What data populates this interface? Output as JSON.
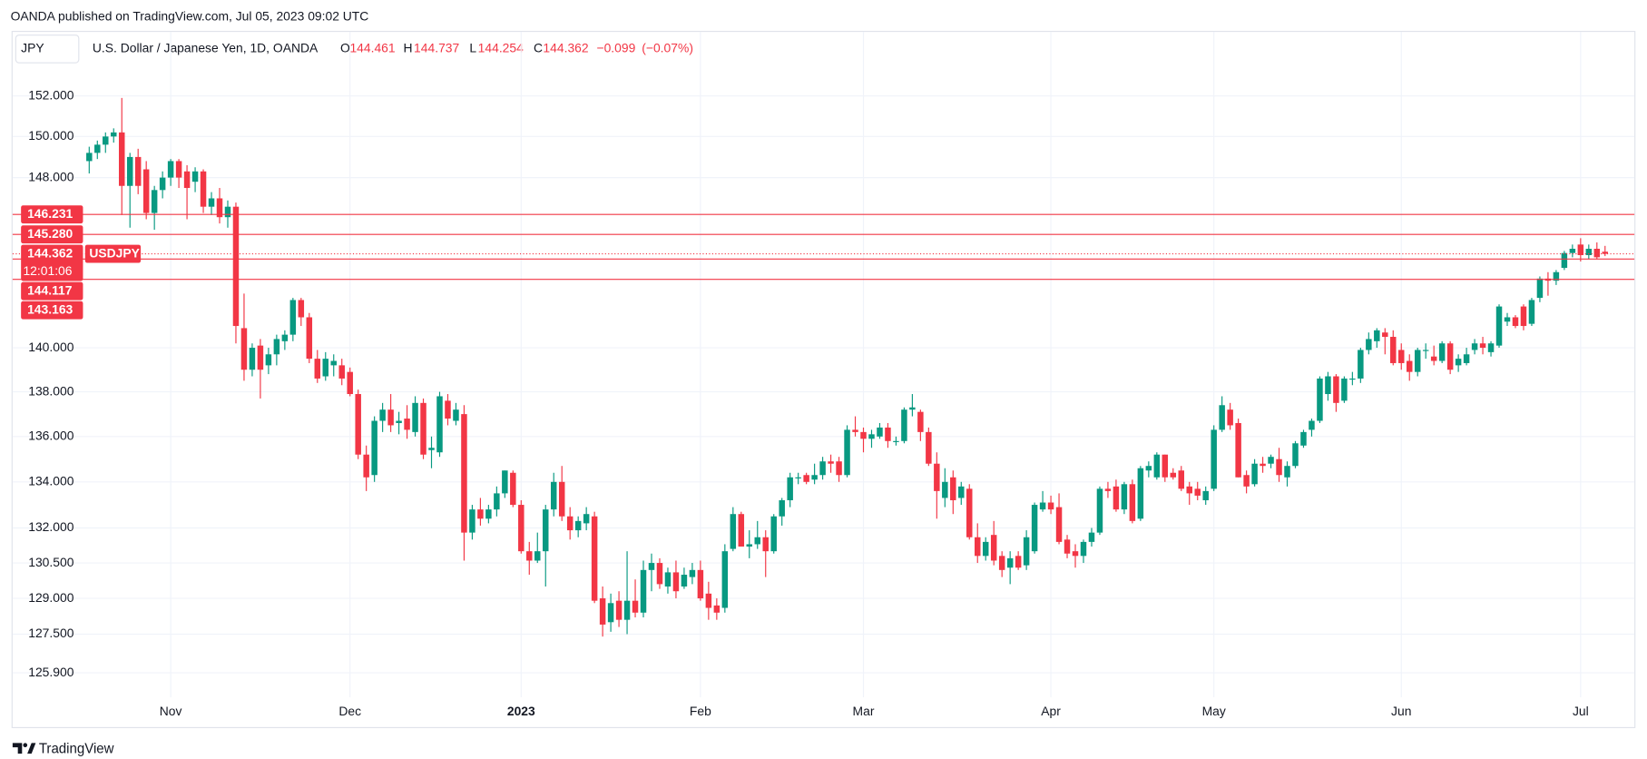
{
  "header": {
    "publisher": "OANDA published on TradingView.com, Jul 05, 2023 09:02 UTC"
  },
  "legend": {
    "symbol": "JPY",
    "name": "U.S. Dollar / Japanese Yen, 1D, OANDA",
    "labels": [
      "O",
      "H",
      "L",
      "C"
    ],
    "change": "−0.099",
    "change_pct": "(−0.07%)"
  },
  "chart_data": {
    "type": "candlestick",
    "log": true,
    "grid": true,
    "up_color": "#089981",
    "down_color": "#f23645",
    "ylim": [
      124.9,
      153.6
    ],
    "yticks": [
      {
        "value": 152,
        "label": "152.000"
      },
      {
        "value": 150,
        "label": "150.000"
      },
      {
        "value": 148,
        "label": "148.000"
      },
      {
        "value": 140,
        "label": "140.000"
      },
      {
        "value": 138,
        "label": "138.000"
      },
      {
        "value": 136,
        "label": "136.000"
      },
      {
        "value": 134,
        "label": "134.000"
      },
      {
        "value": 132,
        "label": "132.000"
      },
      {
        "value": 130.5,
        "label": "130.500"
      },
      {
        "value": 129,
        "label": "129.000"
      },
      {
        "value": 127.5,
        "label": "127.500"
      },
      {
        "value": 125.9,
        "label": "125.900"
      }
    ],
    "xlim": [
      -9.4,
      189.6
    ],
    "xticks": [
      {
        "value": 10,
        "label": "Nov"
      },
      {
        "value": 32,
        "label": "Dec"
      },
      {
        "value": 53,
        "label": "2023"
      },
      {
        "value": 75,
        "label": "Feb"
      },
      {
        "value": 95,
        "label": "Mar"
      },
      {
        "value": 118,
        "label": "Apr"
      },
      {
        "value": 138,
        "label": "May"
      },
      {
        "value": 161,
        "label": "Jun"
      },
      {
        "value": 183,
        "label": "Jul"
      }
    ],
    "levels": [
      {
        "value": 146.231,
        "label": "146.231"
      },
      {
        "value": 145.28,
        "label": "145.280"
      },
      {
        "value": 144.117,
        "label": "144.117"
      },
      {
        "value": 143.163,
        "label": "143.163"
      }
    ],
    "symbol": "USDJPY",
    "countdown": "12:01:06",
    "open": [
      148.8,
      149.2,
      149.6,
      150.0,
      150.2,
      147.6,
      149.0,
      148.4,
      146.3,
      147.4,
      148.0,
      148.8,
      148.3,
      147.8,
      148.3,
      146.6,
      147.0,
      146.1,
      146.6,
      140.9,
      139.0,
      140.1,
      139.2,
      139.7,
      140.3,
      140.6,
      142.2,
      141.4,
      139.5,
      138.7,
      139.2,
      139.2,
      138.9,
      137.9,
      135.2,
      134.3,
      136.7,
      137.2,
      136.6,
      136.8,
      136.2,
      137.5,
      135.4,
      135.3,
      137.6,
      136.7,
      137.0,
      131.8,
      132.8,
      132.4,
      132.8,
      133.5,
      134.4,
      133.0,
      131.0,
      130.6,
      131.0,
      132.8,
      134.0,
      132.5,
      131.9,
      132.2,
      132.5,
      129.0,
      128.0,
      128.9,
      128.1,
      128.9,
      128.4,
      130.2,
      130.5,
      129.5,
      130.1,
      129.5,
      129.9,
      130.2,
      129.2,
      128.7,
      128.6,
      131.1,
      132.6,
      131.2,
      131.3,
      131.6,
      131.0,
      132.5,
      133.2,
      134.2,
      134.3,
      134.1,
      134.3,
      134.9,
      134.9,
      134.3,
      136.3,
      136.2,
      135.9,
      136.0,
      136.4,
      135.8,
      135.8,
      137.2,
      137.1,
      136.2,
      134.8,
      133.3,
      134.2,
      133.3,
      133.7,
      131.6,
      130.8,
      131.7,
      130.8,
      130.3,
      130.8,
      130.4,
      131.0,
      132.8,
      133.1,
      132.9,
      131.5,
      131.0,
      130.8,
      131.4,
      131.8,
      133.7,
      133.8,
      132.8,
      133.9,
      132.4,
      134.5,
      134.2,
      135.2,
      134.4,
      134.5,
      133.8,
      133.7,
      133.2,
      133.7,
      136.3,
      137.2,
      136.6,
      134.3,
      133.9,
      134.8,
      134.8,
      135.0,
      134.2,
      134.7,
      135.6,
      136.3,
      136.7,
      137.9,
      138.7,
      137.6,
      138.6,
      138.6,
      139.9,
      140.3,
      140.7,
      140.5,
      139.9,
      139.4,
      138.9,
      139.9,
      139.6,
      139.4,
      140.2,
      139.2,
      139.3,
      139.9,
      140.2,
      139.8,
      140.1,
      141.2,
      141.4,
      141.9,
      141.1,
      142.3,
      143.2,
      143.1,
      143.7,
      144.4,
      144.8,
      144.3,
      144.6,
      144.461
    ],
    "high": [
      149.5,
      149.8,
      150.2,
      150.4,
      151.9,
      149.2,
      149.4,
      148.8,
      147.6,
      148.3,
      148.9,
      148.9,
      148.6,
      148.5,
      148.4,
      147.3,
      147.5,
      146.9,
      146.8,
      142.5,
      140.2,
      140.4,
      140.0,
      140.6,
      140.8,
      142.3,
      142.3,
      141.6,
      139.9,
      139.8,
      139.7,
      139.5,
      139.1,
      138.1,
      135.6,
      136.9,
      137.5,
      137.9,
      137.1,
      137.4,
      137.8,
      137.7,
      136.0,
      138.0,
      137.9,
      137.5,
      137.4,
      133.0,
      133.3,
      133.0,
      133.8,
      134.5,
      134.5,
      133.2,
      131.4,
      131.8,
      133.0,
      134.4,
      134.7,
      132.9,
      132.5,
      132.9,
      132.7,
      129.5,
      129.2,
      129.3,
      131.0,
      129.8,
      130.6,
      130.9,
      130.7,
      130.3,
      130.6,
      130.3,
      130.5,
      130.6,
      129.7,
      129.0,
      131.3,
      132.9,
      132.7,
      131.9,
      132.3,
      131.9,
      132.6,
      133.3,
      134.4,
      134.4,
      134.4,
      134.8,
      135.1,
      135.2,
      135.1,
      136.5,
      136.9,
      136.4,
      136.3,
      136.6,
      136.6,
      136.0,
      137.3,
      137.9,
      137.2,
      136.4,
      135.3,
      134.6,
      134.5,
      134.0,
      133.9,
      132.2,
      131.6,
      132.3,
      131.0,
      131.0,
      131.0,
      131.9,
      133.1,
      133.6,
      133.4,
      133.5,
      131.7,
      131.3,
      131.5,
      132.0,
      133.8,
      134.0,
      134.1,
      134.0,
      134.1,
      134.7,
      134.9,
      135.3,
      135.2,
      134.6,
      134.7,
      134.0,
      134.0,
      133.8,
      136.5,
      137.8,
      137.5,
      136.8,
      134.5,
      135.0,
      135.1,
      135.2,
      135.5,
      134.9,
      135.8,
      136.3,
      136.8,
      138.7,
      138.9,
      138.8,
      138.7,
      138.9,
      140.0,
      140.7,
      140.9,
      140.9,
      140.8,
      140.2,
      139.7,
      140.0,
      140.2,
      140.1,
      140.3,
      140.3,
      139.7,
      140.0,
      140.4,
      140.5,
      140.3,
      142.0,
      141.6,
      141.5,
      142.0,
      142.3,
      143.3,
      143.5,
      143.6,
      144.5,
      144.8,
      145.1,
      144.8,
      144.9,
      144.737
    ],
    "low": [
      148.2,
      148.9,
      149.2,
      149.7,
      146.2,
      145.6,
      147.2,
      146.0,
      145.5,
      147.0,
      147.6,
      147.5,
      146.0,
      147.3,
      146.3,
      146.2,
      145.8,
      145.6,
      140.2,
      138.5,
      138.7,
      137.7,
      138.8,
      139.2,
      139.9,
      140.3,
      141.0,
      139.3,
      138.4,
      138.5,
      138.7,
      138.3,
      137.8,
      135.0,
      133.6,
      134.0,
      136.2,
      136.2,
      136.1,
      135.9,
      136.0,
      135.0,
      134.6,
      135.1,
      136.5,
      136.5,
      130.6,
      131.5,
      132.1,
      132.2,
      132.5,
      133.3,
      132.9,
      130.9,
      130.0,
      130.5,
      129.5,
      132.5,
      132.3,
      131.5,
      131.6,
      131.9,
      128.8,
      127.4,
      127.6,
      127.8,
      127.5,
      128.2,
      128.2,
      129.3,
      129.4,
      129.2,
      129.0,
      129.4,
      129.6,
      128.9,
      128.1,
      128.1,
      128.4,
      131.0,
      131.2,
      130.7,
      131.1,
      129.9,
      130.9,
      132.1,
      132.9,
      133.9,
      133.9,
      133.9,
      134.1,
      134.4,
      134.0,
      134.2,
      136.0,
      135.3,
      135.5,
      135.9,
      135.5,
      135.6,
      135.7,
      136.9,
      135.8,
      134.7,
      132.4,
      132.9,
      132.6,
      133.0,
      131.5,
      130.5,
      130.6,
      130.4,
      129.9,
      129.6,
      130.2,
      130.2,
      130.9,
      132.7,
      132.6,
      131.3,
      130.7,
      130.3,
      130.5,
      131.2,
      131.7,
      133.3,
      132.7,
      132.6,
      132.2,
      132.3,
      134.2,
      134.1,
      134.0,
      134.1,
      133.6,
      133.0,
      133.2,
      133.0,
      133.6,
      136.2,
      136.3,
      134.2,
      133.5,
      133.8,
      134.4,
      134.6,
      134.0,
      133.8,
      134.6,
      135.5,
      136.0,
      136.6,
      137.6,
      137.1,
      137.5,
      138.3,
      138.4,
      139.7,
      140.0,
      139.7,
      139.2,
      139.0,
      138.5,
      138.7,
      139.5,
      139.2,
      139.3,
      138.8,
      138.9,
      139.2,
      139.7,
      139.7,
      139.6,
      140.0,
      141.0,
      140.9,
      140.8,
      141.0,
      142.1,
      142.4,
      142.9,
      143.6,
      144.2,
      144.0,
      144.1,
      144.1,
      144.254
    ],
    "close": [
      149.2,
      149.6,
      150.0,
      150.2,
      147.6,
      149.0,
      147.6,
      146.3,
      147.4,
      148.0,
      148.8,
      148.0,
      147.5,
      148.3,
      146.6,
      147.0,
      146.1,
      146.6,
      141.0,
      139.0,
      140.0,
      139.0,
      139.7,
      140.4,
      140.6,
      142.2,
      141.4,
      139.5,
      138.6,
      139.5,
      139.4,
      138.6,
      137.9,
      135.2,
      134.2,
      136.7,
      137.2,
      136.5,
      136.7,
      136.3,
      137.5,
      135.2,
      135.5,
      137.8,
      136.8,
      137.2,
      131.8,
      132.8,
      132.4,
      132.8,
      133.5,
      134.5,
      133.0,
      131.0,
      130.6,
      131.0,
      132.8,
      134.0,
      132.5,
      131.9,
      132.3,
      132.6,
      128.9,
      127.9,
      128.8,
      128.1,
      128.9,
      128.4,
      130.2,
      130.5,
      129.6,
      130.1,
      129.3,
      130.0,
      130.2,
      129.0,
      128.6,
      128.4,
      131.0,
      132.6,
      131.2,
      131.3,
      131.6,
      131.0,
      132.5,
      133.2,
      134.2,
      134.2,
      134.0,
      134.3,
      134.9,
      134.8,
      134.3,
      136.3,
      136.2,
      135.9,
      136.1,
      136.4,
      135.8,
      135.8,
      137.2,
      137.3,
      136.2,
      134.8,
      133.6,
      134.0,
      133.2,
      133.8,
      131.6,
      130.8,
      131.4,
      130.6,
      130.2,
      130.7,
      130.3,
      131.6,
      133.0,
      133.1,
      132.8,
      131.4,
      130.9,
      130.8,
      131.4,
      131.8,
      133.7,
      133.6,
      132.8,
      133.9,
      132.3,
      134.6,
      134.7,
      135.2,
      134.2,
      134.2,
      133.7,
      133.5,
      133.4,
      133.6,
      136.3,
      137.4,
      136.5,
      134.2,
      133.8,
      134.8,
      134.7,
      135.1,
      134.3,
      134.7,
      135.7,
      136.2,
      136.7,
      138.6,
      138.7,
      137.5,
      138.6,
      138.6,
      139.9,
      140.4,
      140.8,
      140.5,
      139.3,
      139.3,
      138.9,
      139.9,
      139.9,
      139.4,
      140.2,
      139.0,
      139.5,
      139.7,
      140.2,
      140.0,
      140.2,
      141.9,
      141.4,
      141.0,
      141.0,
      142.2,
      143.2,
      143.1,
      143.5,
      144.4,
      144.6,
      144.3,
      144.6,
      144.2,
      144.362
    ]
  },
  "footer": {
    "brand": "TradingView"
  }
}
